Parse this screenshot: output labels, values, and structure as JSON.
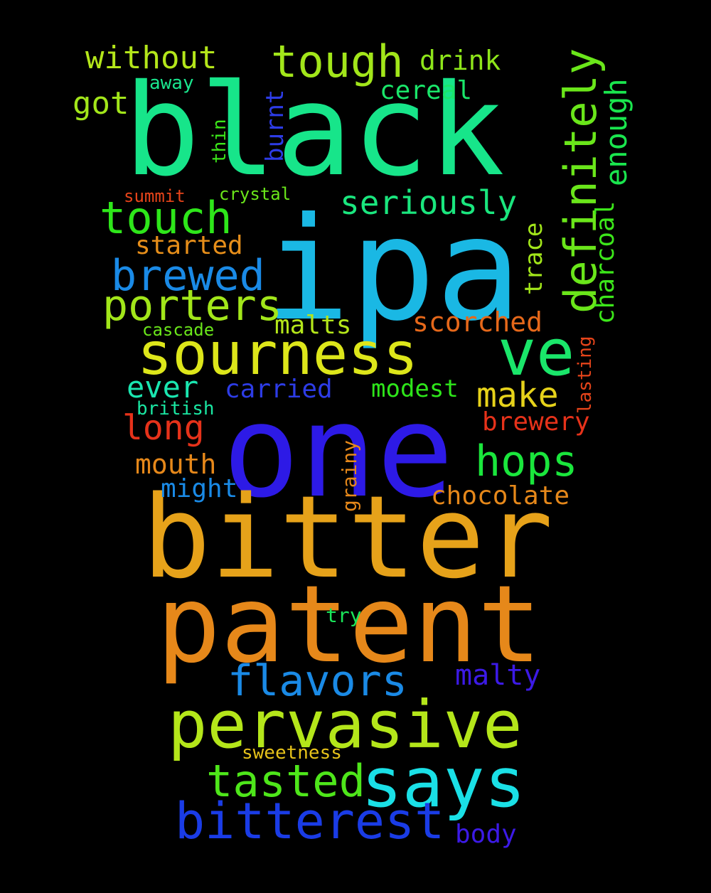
{
  "words": [
    {
      "text": "black",
      "color": "#17e58a"
    },
    {
      "text": "ipa",
      "color": "#1ab8e4"
    },
    {
      "text": "one",
      "color": "#2d1ae6"
    },
    {
      "text": "bitter",
      "color": "#e6a21a"
    },
    {
      "text": "patent",
      "color": "#e6881a"
    },
    {
      "text": "pervasive",
      "color": "#b4e61a"
    },
    {
      "text": "sourness",
      "color": "#dde61a"
    },
    {
      "text": "says",
      "color": "#1ae0e6"
    },
    {
      "text": "bitterest",
      "color": "#1a3ce6"
    },
    {
      "text": "ve",
      "color": "#1ae66a"
    },
    {
      "text": "tough",
      "color": "#a2e61a"
    },
    {
      "text": "touch",
      "color": "#2ee61a"
    },
    {
      "text": "definitely",
      "color": "#6ae61a"
    },
    {
      "text": "brewed",
      "color": "#1a8ae6"
    },
    {
      "text": "porters",
      "color": "#a2e61a"
    },
    {
      "text": "flavors",
      "color": "#1a8ae6"
    },
    {
      "text": "tasted",
      "color": "#4ee61a"
    },
    {
      "text": "hops",
      "color": "#1ae63c"
    },
    {
      "text": "seriously",
      "color": "#1ae67e"
    },
    {
      "text": "without",
      "color": "#b4e61a"
    },
    {
      "text": "make",
      "color": "#e6d21a"
    },
    {
      "text": "malty",
      "color": "#3c1ae6"
    },
    {
      "text": "long",
      "color": "#e6321a"
    },
    {
      "text": "enough",
      "color": "#1ae64e"
    },
    {
      "text": "charcoal",
      "color": "#3ce61a"
    },
    {
      "text": "scorched",
      "color": "#e6681a"
    },
    {
      "text": "got",
      "color": "#a2e61a"
    },
    {
      "text": "drink",
      "color": "#8ee61a"
    },
    {
      "text": "cereal",
      "color": "#1ae66a"
    },
    {
      "text": "started",
      "color": "#e68e1a"
    },
    {
      "text": "malts",
      "color": "#b4e61a"
    },
    {
      "text": "ever",
      "color": "#1ae6b0"
    },
    {
      "text": "carried",
      "color": "#2d3ce6"
    },
    {
      "text": "modest",
      "color": "#2ee61a"
    },
    {
      "text": "chocolate",
      "color": "#e6881a"
    },
    {
      "text": "mouth",
      "color": "#e6881a"
    },
    {
      "text": "brewery",
      "color": "#e6321a"
    },
    {
      "text": "trace",
      "color": "#a2e61a"
    },
    {
      "text": "burnt",
      "color": "#2d3ce6"
    },
    {
      "text": "might",
      "color": "#1a8ae6"
    },
    {
      "text": "body",
      "color": "#3c1ae6"
    },
    {
      "text": "cascade",
      "color": "#6ae61a"
    },
    {
      "text": "british",
      "color": "#1ae6a2"
    },
    {
      "text": "lasting",
      "color": "#e6441a"
    },
    {
      "text": "grainy",
      "color": "#e6881a"
    },
    {
      "text": "away",
      "color": "#1ae68e"
    },
    {
      "text": "thin",
      "color": "#3ce61a"
    },
    {
      "text": "summit",
      "color": "#e6441a"
    },
    {
      "text": "crystal",
      "color": "#6ae61a"
    },
    {
      "text": "try",
      "color": "#1ae65a"
    },
    {
      "text": "sweetness",
      "color": "#e6c21a"
    }
  ]
}
